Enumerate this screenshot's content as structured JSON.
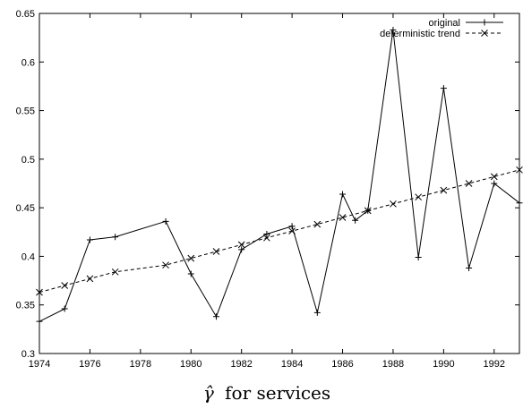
{
  "chart_data": {
    "type": "line",
    "title": "",
    "caption_symbol": "γ̂",
    "caption_text": "for services",
    "xlabel": "",
    "ylabel": "",
    "xlim": [
      1974,
      1993
    ],
    "ylim": [
      0.3,
      0.65
    ],
    "x_ticks": [
      1974,
      1976,
      1978,
      1980,
      1982,
      1984,
      1986,
      1988,
      1990,
      1992
    ],
    "x_tick_labels": [
      "1974",
      "1976",
      "1978",
      "1980",
      "1982",
      "1984",
      "1986",
      "1988",
      "1990",
      "1992"
    ],
    "y_ticks": [
      0.3,
      0.35,
      0.4,
      0.45,
      0.5,
      0.55,
      0.6,
      0.65
    ],
    "y_tick_labels": [
      "0.3",
      "0.35",
      "0.4",
      "0.45",
      "0.5",
      "0.55",
      "0.6",
      "0.65"
    ],
    "legend_position": "top-right",
    "grid": false,
    "series": [
      {
        "name": "original",
        "style": "solid",
        "marker": "plus",
        "color": "#000000",
        "points": [
          [
            1974,
            0.333
          ],
          [
            1975,
            0.346
          ],
          [
            1976,
            0.417
          ],
          [
            1977,
            0.42
          ],
          [
            1979,
            0.436
          ],
          [
            1980,
            0.382
          ],
          [
            1981,
            0.338
          ],
          [
            1982,
            0.407
          ],
          [
            1983,
            0.423
          ],
          [
            1984,
            0.431
          ],
          [
            1985,
            0.342
          ],
          [
            1986,
            0.464
          ],
          [
            1986.5,
            0.437
          ],
          [
            1987,
            0.447
          ],
          [
            1988,
            0.633
          ],
          [
            1989,
            0.399
          ],
          [
            1990,
            0.573
          ],
          [
            1991,
            0.388
          ],
          [
            1992,
            0.475
          ],
          [
            1993,
            0.455
          ]
        ]
      },
      {
        "name": "deterministic trend",
        "style": "dashed",
        "marker": "cross",
        "color": "#000000",
        "points": [
          [
            1974,
            0.363
          ],
          [
            1975,
            0.37
          ],
          [
            1976,
            0.377
          ],
          [
            1977,
            0.384
          ],
          [
            1979,
            0.391
          ],
          [
            1980,
            0.398
          ],
          [
            1981,
            0.405
          ],
          [
            1982,
            0.412
          ],
          [
            1983,
            0.419
          ],
          [
            1984,
            0.426
          ],
          [
            1985,
            0.433
          ],
          [
            1986,
            0.44
          ],
          [
            1987,
            0.447
          ],
          [
            1988,
            0.454
          ],
          [
            1989,
            0.461
          ],
          [
            1990,
            0.468
          ],
          [
            1991,
            0.475
          ],
          [
            1992,
            0.482
          ],
          [
            1993,
            0.489
          ]
        ]
      }
    ]
  }
}
